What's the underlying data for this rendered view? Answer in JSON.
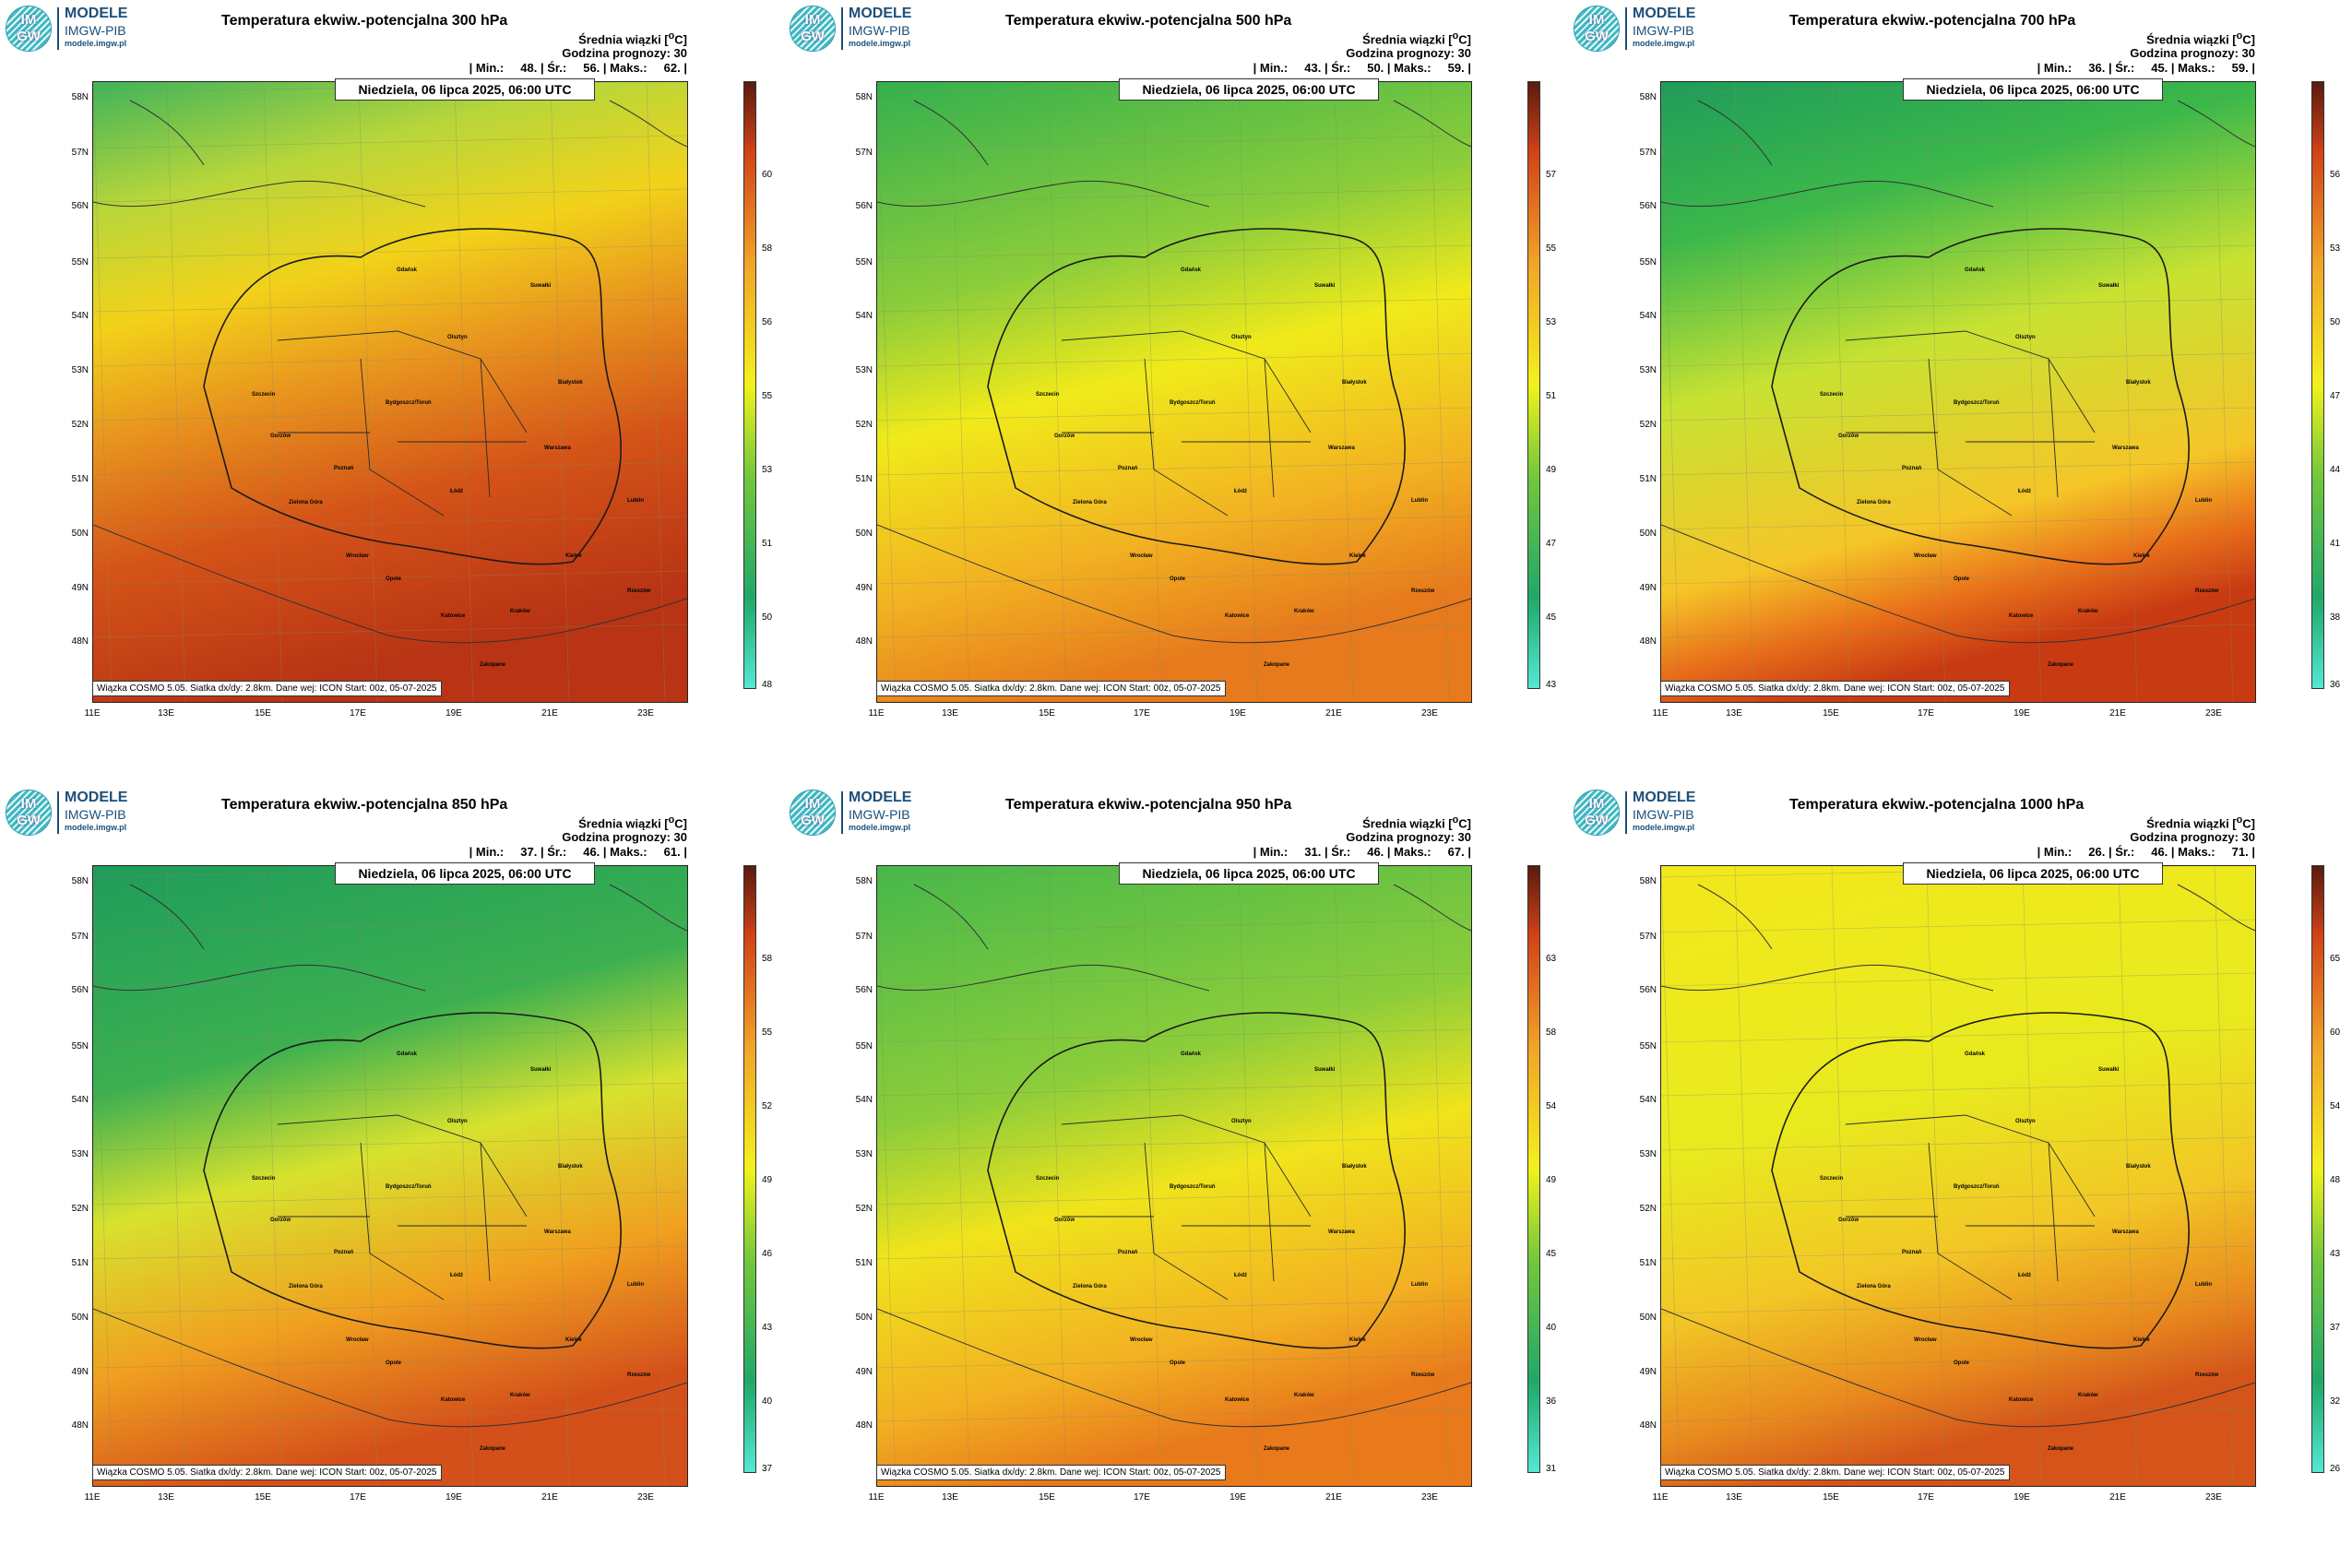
{
  "logo": {
    "circle_top": "IM",
    "circle_bottom": "GW",
    "line1": "MODELE",
    "line2": "IMGW-PIB",
    "line3": "modele.imgw.pl"
  },
  "common": {
    "legend_label": "Średnia wiązki [",
    "legend_unit_sup": "o",
    "legend_unit_end": "C]",
    "forecast_hour": "Godzina prognozy: 30",
    "date_label": "Niedziela, 06 lipca 2025, 06:00 UTC",
    "info": "Wiązka COSMO 5.05. Siatka dx/dy: 2.8km. Dane wej: ICON Start: 00z, 05-07-2025",
    "lat_labels": [
      "58N",
      "57N",
      "56N",
      "55N",
      "54N",
      "53N",
      "52N",
      "51N",
      "50N",
      "49N",
      "48N"
    ],
    "lon_labels": [
      "11E",
      "13E",
      "15E",
      "17E",
      "19E",
      "21E",
      "23E"
    ],
    "cities": [
      "Gdańsk",
      "Suwałki",
      "Olsztyn",
      "Szczecin",
      "Białystok",
      "Bydgoszcz/Toruń",
      "Gorzów",
      "Warszawa",
      "Poznań",
      "Zielona Góra",
      "Łódź",
      "Lublin",
      "Wrocław",
      "Kielce",
      "Opole",
      "Rzeszów",
      "Katowice",
      "Kraków",
      "Zakopane"
    ]
  },
  "panels": [
    {
      "title": "Temperatura ekwiw.-potencjalna 300 hPa",
      "stats": "| Min.:     48. | Śr.:     56. | Maks.:     62. |",
      "ticks": [
        "60",
        "58",
        "56",
        "55",
        "53",
        "51",
        "50",
        "48"
      ]
    },
    {
      "title": "Temperatura ekwiw.-potencjalna 500 hPa",
      "stats": "| Min.:     43. | Śr.:     50. | Maks.:     59. |",
      "ticks": [
        "57",
        "55",
        "53",
        "51",
        "49",
        "47",
        "45",
        "43"
      ]
    },
    {
      "title": "Temperatura ekwiw.-potencjalna 700 hPa",
      "stats": "| Min.:     36. | Śr.:     45. | Maks.:     59. |",
      "ticks": [
        "56",
        "53",
        "50",
        "47",
        "44",
        "41",
        "38",
        "36"
      ]
    },
    {
      "title": "Temperatura ekwiw.-potencjalna 850 hPa",
      "stats": "| Min.:     37. | Śr.:     46. | Maks.:     61. |",
      "ticks": [
        "58",
        "55",
        "52",
        "49",
        "46",
        "43",
        "40",
        "37"
      ]
    },
    {
      "title": "Temperatura ekwiw.-potencjalna 950 hPa",
      "stats": "| Min.:     31. | Śr.:     46. | Maks.:     67. |",
      "ticks": [
        "63",
        "58",
        "54",
        "49",
        "45",
        "40",
        "36",
        "31"
      ]
    },
    {
      "title": "Temperatura ekwiw.-potencjalna 1000 hPa",
      "stats": "| Min.:     26. | Śr.:     46. | Maks.:     71. |",
      "ticks": [
        "65",
        "60",
        "54",
        "48",
        "43",
        "37",
        "32",
        "26"
      ]
    }
  ],
  "colors": {
    "gradients": [
      [
        [
          "0",
          "#3fb45a"
        ],
        [
          "0.2",
          "#b8d63a"
        ],
        [
          "0.38",
          "#f2d21a"
        ],
        [
          "0.55",
          "#e8941e"
        ],
        [
          "0.75",
          "#d45418"
        ],
        [
          "1",
          "#b83414"
        ]
      ],
      [
        [
          "0",
          "#33b04e"
        ],
        [
          "0.35",
          "#8ccd3a"
        ],
        [
          "0.55",
          "#f0ea1a"
        ],
        [
          "0.8",
          "#f2b222"
        ],
        [
          "1",
          "#e67a1c"
        ]
      ],
      [
        [
          "0",
          "#1f9c5a"
        ],
        [
          "0.25",
          "#3cb84a"
        ],
        [
          "0.5",
          "#c8e232"
        ],
        [
          "0.78",
          "#f5c528"
        ],
        [
          "0.9",
          "#e8701a"
        ],
        [
          "1",
          "#c83a12"
        ]
      ],
      [
        [
          "0",
          "#1f9c5a"
        ],
        [
          "0.35",
          "#3cb050"
        ],
        [
          "0.55",
          "#d8e22e"
        ],
        [
          "0.78",
          "#f0a020"
        ],
        [
          "1",
          "#d4501a"
        ]
      ],
      [
        [
          "0",
          "#46b84a"
        ],
        [
          "0.4",
          "#8ccd3a"
        ],
        [
          "0.6",
          "#f0e41c"
        ],
        [
          "0.85",
          "#f2b022"
        ],
        [
          "1",
          "#e87a1c"
        ]
      ],
      [
        [
          "0",
          "#f2e81c"
        ],
        [
          "0.45",
          "#e8ea1e"
        ],
        [
          "0.7",
          "#f2c626"
        ],
        [
          "0.88",
          "#e88a1e"
        ],
        [
          "1",
          "#d4541a"
        ]
      ]
    ],
    "colorbar": [
      [
        "0",
        "#52e8d4"
      ],
      [
        "0.15",
        "#20a86a"
      ],
      [
        "0.35",
        "#72c83a"
      ],
      [
        "0.5",
        "#f2f21a"
      ],
      [
        "0.7",
        "#f2a428"
      ],
      [
        "0.88",
        "#d44418"
      ],
      [
        "1",
        "#5a1c0e"
      ]
    ]
  }
}
